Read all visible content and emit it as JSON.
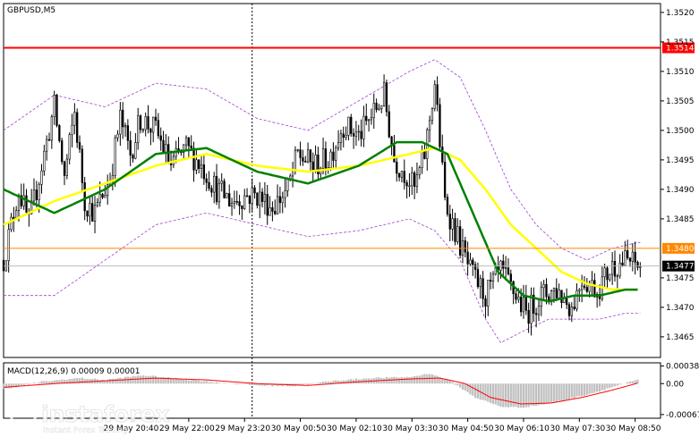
{
  "chart_data": [
    {
      "type": "candlestick",
      "title": "GBPUSD,M5",
      "y_ticks": [
        "1.3520",
        "1.3515",
        "1.3510",
        "1.3505",
        "1.3500",
        "1.3495",
        "1.3490",
        "1.3485",
        "1.3475",
        "1.3470",
        "1.3465"
      ],
      "ylim": [
        1.34615,
        1.35215
      ],
      "x_ticks": [
        "29 May 20:40",
        "29 May 22:00",
        "29 May 23:20",
        "30 May 00:50",
        "30 May 02:10",
        "30 May 03:30",
        "30 May 04:50",
        "30 May 06:10",
        "30 May 07:30",
        "30 May 08:50"
      ],
      "x_tick_index": [
        51,
        73,
        95,
        117,
        139,
        161,
        183,
        205,
        227,
        249
      ],
      "bar_count": 260,
      "levels": [
        {
          "label": "1.3514",
          "value": 1.3514,
          "color": "#ff0000"
        },
        {
          "label": "1.3480",
          "value": 1.348,
          "color": "#ff8800"
        }
      ],
      "current_price": {
        "label": "1.3477",
        "value": 1.3477
      },
      "vertical_marker_index": 98,
      "anchors": [
        [
          0,
          1.3478
        ],
        [
          6,
          1.349
        ],
        [
          10,
          1.3484
        ],
        [
          16,
          1.3496
        ],
        [
          20,
          1.3504
        ],
        [
          24,
          1.3492
        ],
        [
          28,
          1.3503
        ],
        [
          32,
          1.3488
        ],
        [
          36,
          1.3486
        ],
        [
          42,
          1.3492
        ],
        [
          46,
          1.3502
        ],
        [
          50,
          1.3496
        ],
        [
          54,
          1.3502
        ],
        [
          60,
          1.35
        ],
        [
          66,
          1.3494
        ],
        [
          72,
          1.3497
        ],
        [
          78,
          1.3494
        ],
        [
          84,
          1.349
        ],
        [
          90,
          1.3488
        ],
        [
          96,
          1.3489
        ],
        [
          100,
          1.3489
        ],
        [
          106,
          1.3487
        ],
        [
          112,
          1.349
        ],
        [
          116,
          1.3496
        ],
        [
          122,
          1.3494
        ],
        [
          128,
          1.3495
        ],
        [
          134,
          1.3501
        ],
        [
          140,
          1.3499
        ],
        [
          146,
          1.3503
        ],
        [
          150,
          1.3506
        ],
        [
          154,
          1.3495
        ],
        [
          158,
          1.3493
        ],
        [
          162,
          1.349
        ],
        [
          166,
          1.3496
        ],
        [
          170,
          1.3508
        ],
        [
          174,
          1.3488
        ],
        [
          178,
          1.3483
        ],
        [
          184,
          1.3476
        ],
        [
          190,
          1.3472
        ],
        [
          196,
          1.3476
        ],
        [
          202,
          1.3472
        ],
        [
          206,
          1.3469
        ],
        [
          212,
          1.3472
        ],
        [
          218,
          1.3473
        ],
        [
          224,
          1.347
        ],
        [
          228,
          1.3475
        ],
        [
          234,
          1.3473
        ],
        [
          240,
          1.3477
        ],
        [
          246,
          1.3478
        ],
        [
          250,
          1.3477
        ]
      ],
      "ma_yellow": [
        [
          0,
          1.3484
        ],
        [
          20,
          1.3488
        ],
        [
          40,
          1.3491
        ],
        [
          60,
          1.3494
        ],
        [
          80,
          1.3496
        ],
        [
          100,
          1.3494
        ],
        [
          120,
          1.3493
        ],
        [
          140,
          1.3494
        ],
        [
          160,
          1.3496
        ],
        [
          170,
          1.3497
        ],
        [
          180,
          1.3495
        ],
        [
          190,
          1.349
        ],
        [
          200,
          1.3484
        ],
        [
          210,
          1.348
        ],
        [
          220,
          1.3476
        ],
        [
          230,
          1.3474
        ],
        [
          240,
          1.3473
        ],
        [
          250,
          1.3473
        ]
      ],
      "ma_green": [
        [
          0,
          1.349
        ],
        [
          20,
          1.3486
        ],
        [
          40,
          1.349
        ],
        [
          60,
          1.3496
        ],
        [
          80,
          1.3497
        ],
        [
          100,
          1.3493
        ],
        [
          120,
          1.3491
        ],
        [
          140,
          1.3494
        ],
        [
          155,
          1.3498
        ],
        [
          165,
          1.3498
        ],
        [
          175,
          1.3496
        ],
        [
          185,
          1.3486
        ],
        [
          195,
          1.3476
        ],
        [
          205,
          1.3472
        ],
        [
          215,
          1.3471
        ],
        [
          225,
          1.3472
        ],
        [
          235,
          1.3472
        ],
        [
          245,
          1.3473
        ],
        [
          250,
          1.3473
        ]
      ],
      "envelope_upper": [
        [
          0,
          1.35
        ],
        [
          20,
          1.3506
        ],
        [
          40,
          1.3504
        ],
        [
          60,
          1.3508
        ],
        [
          80,
          1.3507
        ],
        [
          100,
          1.3502
        ],
        [
          120,
          1.35
        ],
        [
          140,
          1.3505
        ],
        [
          160,
          1.351
        ],
        [
          170,
          1.3512
        ],
        [
          180,
          1.3509
        ],
        [
          190,
          1.35
        ],
        [
          200,
          1.349
        ],
        [
          210,
          1.3484
        ],
        [
          220,
          1.348
        ],
        [
          230,
          1.3478
        ],
        [
          240,
          1.348
        ],
        [
          250,
          1.3481
        ]
      ],
      "envelope_lower": [
        [
          0,
          1.3472
        ],
        [
          20,
          1.3472
        ],
        [
          40,
          1.3478
        ],
        [
          60,
          1.3484
        ],
        [
          80,
          1.3486
        ],
        [
          100,
          1.3484
        ],
        [
          120,
          1.3482
        ],
        [
          140,
          1.3483
        ],
        [
          160,
          1.3485
        ],
        [
          170,
          1.3483
        ],
        [
          180,
          1.3478
        ],
        [
          190,
          1.3468
        ],
        [
          196,
          1.3464
        ],
        [
          205,
          1.3466
        ],
        [
          215,
          1.3468
        ],
        [
          225,
          1.3468
        ],
        [
          235,
          1.3468
        ],
        [
          245,
          1.3469
        ],
        [
          250,
          1.3469
        ]
      ],
      "colors": {
        "bullish": "#ffffff",
        "bearish": "#000000",
        "wick": "#000000",
        "ma_yellow": "#ffff00",
        "ma_green": "#008000",
        "envelope": "#a040d0",
        "grid": "#000000"
      }
    },
    {
      "type": "macd",
      "title": "MACD(12,26,9) 0.00009 0.00001",
      "y_ticks": [
        "0.00038",
        "0.00",
        "-0.00067"
      ],
      "ylim": [
        -0.00075,
        0.00045
      ],
      "zero": 0.0,
      "hist_anchors": [
        [
          0,
          -0.00012
        ],
        [
          15,
          4e-05
        ],
        [
          30,
          0.00012
        ],
        [
          40,
          8e-05
        ],
        [
          55,
          0.00018
        ],
        [
          70,
          0.0001
        ],
        [
          85,
          2e-05
        ],
        [
          100,
          -4e-05
        ],
        [
          115,
          -5e-05
        ],
        [
          130,
          6e-05
        ],
        [
          145,
          0.00012
        ],
        [
          160,
          0.00014
        ],
        [
          168,
          0.00022
        ],
        [
          176,
          6e-05
        ],
        [
          186,
          -0.0003
        ],
        [
          196,
          -0.0005
        ],
        [
          204,
          -0.00052
        ],
        [
          214,
          -0.00044
        ],
        [
          224,
          -0.00032
        ],
        [
          234,
          -0.00018
        ],
        [
          242,
          -4e-05
        ],
        [
          250,
          8e-05
        ]
      ],
      "signal_anchors": [
        [
          0,
          -8e-05
        ],
        [
          20,
          0.0
        ],
        [
          40,
          6e-05
        ],
        [
          60,
          0.00012
        ],
        [
          80,
          8e-05
        ],
        [
          100,
          0.0
        ],
        [
          120,
          -4e-05
        ],
        [
          140,
          4e-05
        ],
        [
          160,
          0.0001
        ],
        [
          172,
          0.00012
        ],
        [
          182,
          0.0
        ],
        [
          192,
          -0.0003
        ],
        [
          204,
          -0.00044
        ],
        [
          216,
          -0.00042
        ],
        [
          228,
          -0.0003
        ],
        [
          240,
          -0.00014
        ],
        [
          250,
          1e-05
        ]
      ],
      "colors": {
        "histogram": "#c0c0c0",
        "signal": "#ff0000"
      }
    }
  ],
  "watermark": {
    "brand": "instaforex",
    "tagline": "Instant Forex Trading"
  }
}
